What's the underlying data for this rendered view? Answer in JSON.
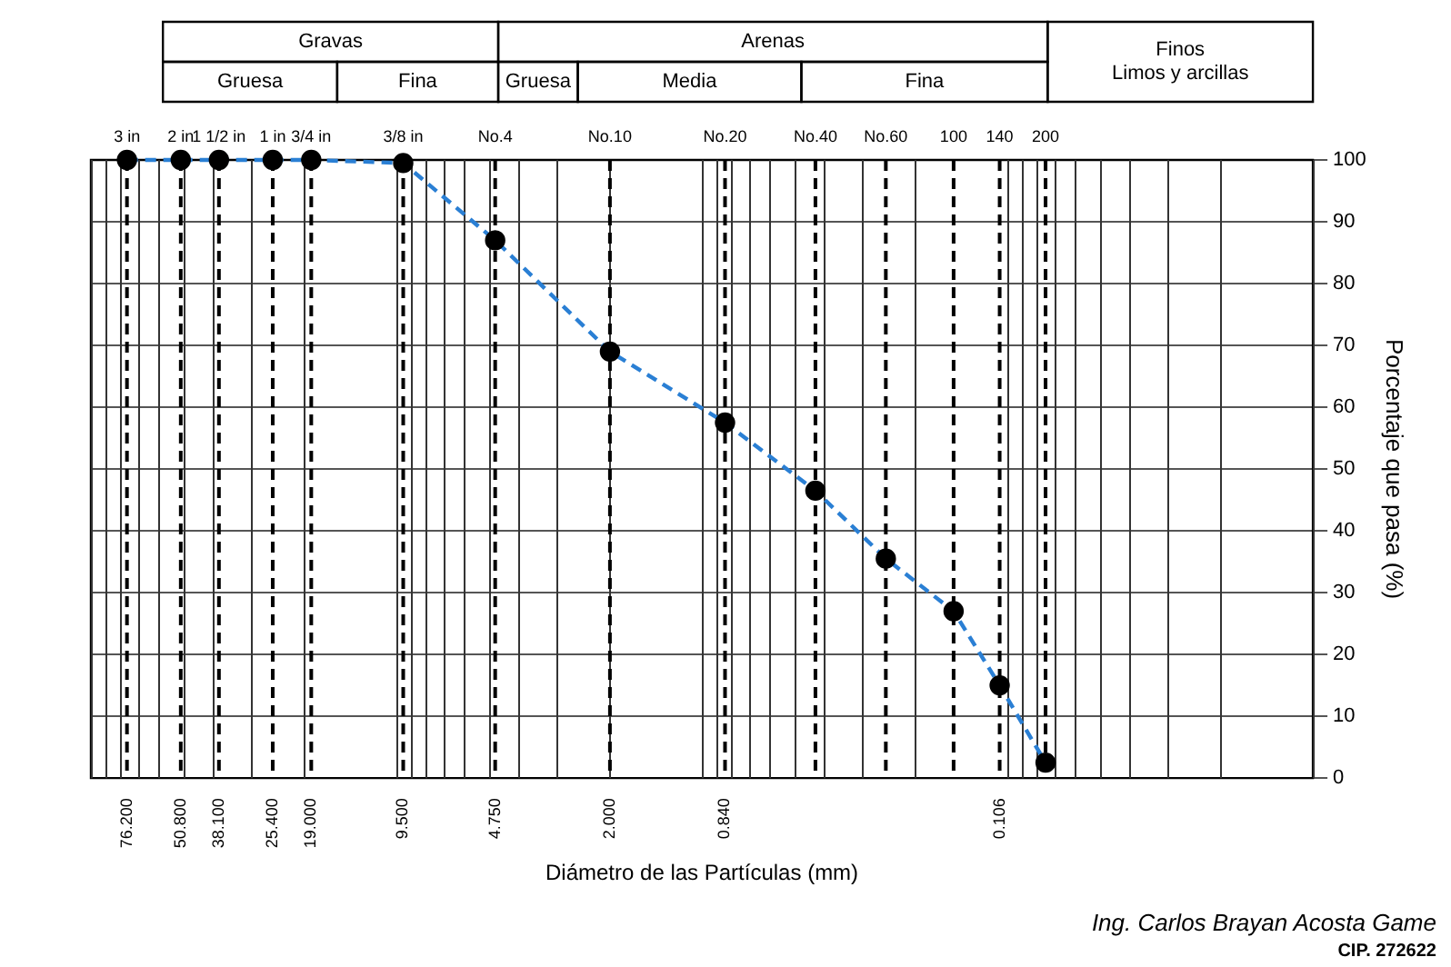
{
  "chart_data": {
    "type": "line",
    "xlabel": "Diámetro de las Partículas (mm)",
    "ylabel": "Porcentaje que pasa (%)",
    "log": "x",
    "xlim": [
      100,
      0.01
    ],
    "xticks": [
      {
        "value": 76.2,
        "label": "76.200"
      },
      {
        "value": 50.8,
        "label": "50.800"
      },
      {
        "value": 38.1,
        "label": "38.100"
      },
      {
        "value": 25.4,
        "label": "25.400"
      },
      {
        "value": 19,
        "label": "19.000"
      },
      {
        "value": 9.5,
        "label": "9.500"
      },
      {
        "value": 4.75,
        "label": "4.750"
      },
      {
        "value": 2,
        "label": "2.000"
      },
      {
        "value": 0.84,
        "label": "0.840"
      },
      {
        "value": 0.106,
        "label": "0.106"
      }
    ],
    "ylim": [
      0,
      100
    ],
    "yticks": [
      0,
      10,
      20,
      30,
      40,
      50,
      60,
      70,
      80,
      90,
      100
    ],
    "grid": true,
    "marker": "circle",
    "line_style": "dashed",
    "legend": false,
    "series": [
      {
        "color": "#2a7fd4",
        "x": [
          76.2,
          50.8,
          38.1,
          25.4,
          19,
          9.5,
          4.75,
          2,
          0.84,
          0.425,
          0.25,
          0.15,
          0.106,
          0.075
        ],
        "values": [
          100,
          100,
          100,
          100,
          100,
          99.5,
          87,
          69,
          57.5,
          46.5,
          35.5,
          27,
          15,
          2.5
        ]
      }
    ],
    "ref_lines": [
      {
        "axis": "x",
        "value": 76.2,
        "label": "3 in",
        "line_style": "dashed",
        "color": "#000000"
      },
      {
        "axis": "x",
        "value": 50.8,
        "label": "2 in",
        "line_style": "dashed",
        "color": "#000000"
      },
      {
        "axis": "x",
        "value": 38.1,
        "label": "1 1/2 in",
        "line_style": "dashed",
        "color": "#000000"
      },
      {
        "axis": "x",
        "value": 25.4,
        "label": "1 in",
        "line_style": "dashed",
        "color": "#000000"
      },
      {
        "axis": "x",
        "value": 19,
        "label": "3/4 in",
        "line_style": "dashed",
        "color": "#000000"
      },
      {
        "axis": "x",
        "value": 9.5,
        "label": "3/8 in",
        "line_style": "dashed",
        "color": "#000000"
      },
      {
        "axis": "x",
        "value": 4.75,
        "label": "No.4",
        "line_style": "dashed",
        "color": "#000000"
      },
      {
        "axis": "x",
        "value": 2,
        "label": "No.10",
        "line_style": "dashed",
        "color": "#000000"
      },
      {
        "axis": "x",
        "value": 0.84,
        "label": "No.20",
        "line_style": "dashed",
        "color": "#000000"
      },
      {
        "axis": "x",
        "value": 0.425,
        "label": "No.40",
        "line_style": "dashed",
        "color": "#000000"
      },
      {
        "axis": "x",
        "value": 0.25,
        "label": "No.60",
        "line_style": "dashed",
        "color": "#000000"
      },
      {
        "axis": "x",
        "value": 0.15,
        "line_style": "dashed",
        "color": "#000000"
      },
      {
        "axis": "x",
        "value": 0.106,
        "line_style": "dashed",
        "color": "#000000"
      },
      {
        "axis": "x",
        "value": 0.075,
        "line_style": "dashed",
        "color": "#000000"
      }
    ],
    "annotations": [
      "Gravas",
      "Gruesa",
      "Fina",
      "Arenas",
      "Gruesa",
      "Media",
      "Fina",
      "Finos Limos y arcillas",
      "Ing. Carlos Brayan Acosta Game",
      "CIP. 272622",
      {
        "text": "100",
        "x": 0.15,
        "y": 100
      },
      {
        "text": "140",
        "x": 0.106,
        "y": 100
      },
      {
        "text": "200",
        "x": 0.075,
        "y": 100
      }
    ]
  }
}
